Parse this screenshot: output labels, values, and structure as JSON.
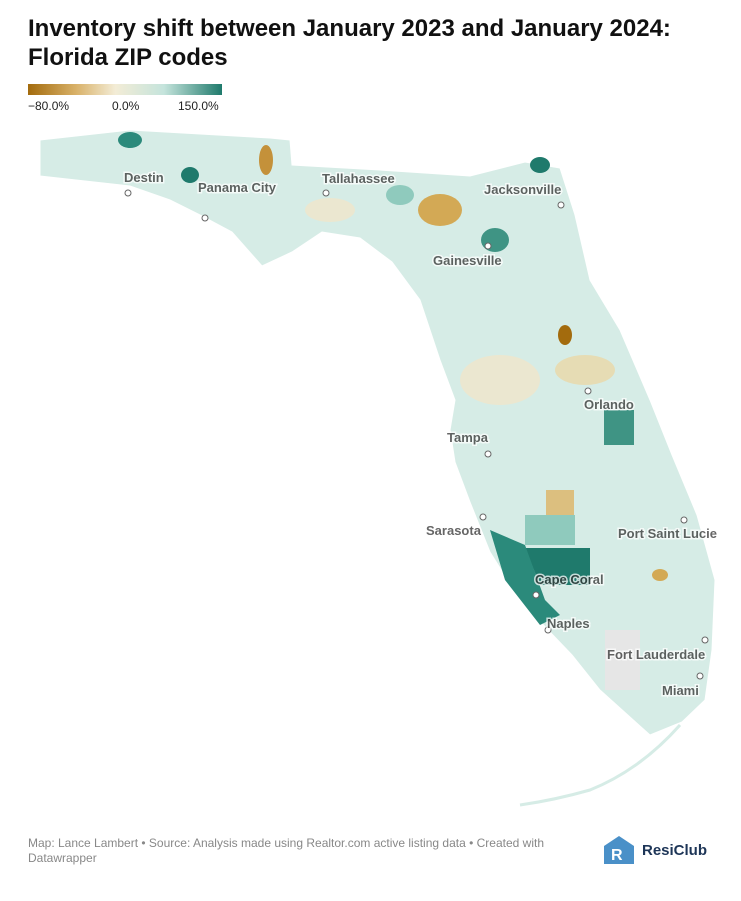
{
  "title": "Inventory shift between January 2023 and January 2024: Florida ZIP codes",
  "legend": {
    "labels": [
      "−80.0%",
      "0.0%",
      "150.0%"
    ]
  },
  "cities": [
    "Destin",
    "Panama City",
    "Tallahassee",
    "Jacksonville",
    "Gainesville",
    "Orlando",
    "Tampa",
    "Sarasota",
    "Port Saint Lucie",
    "Cape Coral",
    "Naples",
    "Fort Lauderdale",
    "Miami"
  ],
  "footer": "Map: Lance Lambert • Source: Analysis made using Realtor.com active listing data • Created with Datawrapper",
  "logo": "ResiClub"
}
